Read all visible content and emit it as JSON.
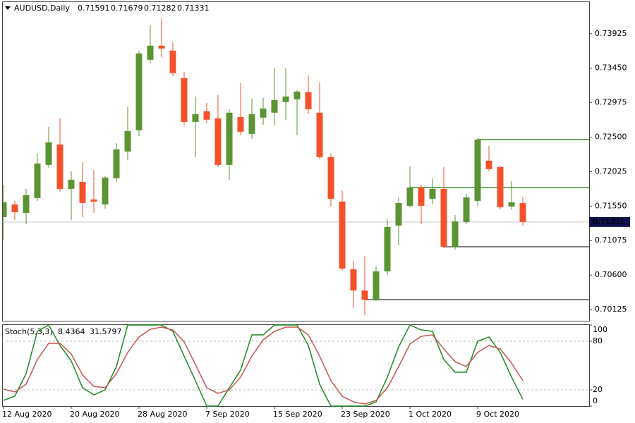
{
  "chart_data": [
    {
      "type": "candlestick",
      "symbol": "AUDUSD,Daily",
      "categories": [
        "12 Aug 2020",
        null,
        null,
        null,
        null,
        null,
        "20 Aug 2020",
        null,
        null,
        null,
        null,
        null,
        "28 Aug 2020",
        null,
        null,
        null,
        null,
        null,
        "7 Sep 2020",
        null,
        null,
        null,
        null,
        null,
        "15 Sep 2020",
        null,
        null,
        null,
        null,
        null,
        "23 Sep 2020",
        null,
        null,
        null,
        null,
        null,
        "1 Oct 2020",
        null,
        null,
        null,
        null,
        null,
        "9 Oct 2020",
        null,
        null,
        null,
        null
      ],
      "open": [
        0.71398,
        0.71573,
        0.71457,
        0.71661,
        0.72118,
        0.72399,
        0.71787,
        0.71884,
        0.71641,
        0.71573,
        0.71933,
        0.72302,
        0.72594,
        0.73566,
        0.7376,
        0.73692,
        0.73313,
        0.7271,
        0.72856,
        0.72759,
        0.72118,
        0.72778,
        0.72545,
        0.72769,
        0.72837,
        0.72983,
        0.73021,
        0.73119,
        0.72837,
        0.72224,
        0.71612,
        0.70679,
        0.70387,
        0.70261,
        0.7065,
        0.71282,
        0.71554,
        0.71806,
        0.71651,
        0.71787,
        0.7099,
        0.7133,
        0.71622,
        0.72176,
        0.72088,
        0.71544,
        0.71591
      ],
      "high": [
        0.71845,
        0.71622,
        0.71787,
        0.72273,
        0.72642,
        0.72759,
        0.7203,
        0.72156,
        0.7204,
        0.71962,
        0.72419,
        0.72915,
        0.73692,
        0.74042,
        0.74139,
        0.73809,
        0.73401,
        0.7306,
        0.72973,
        0.7308,
        0.72885,
        0.73245,
        0.73031,
        0.73041,
        0.73449,
        0.73449,
        0.73148,
        0.73352,
        0.73255,
        0.72273,
        0.71768,
        0.70796,
        0.70864,
        0.70718,
        0.71369,
        0.7167,
        0.72098,
        0.71845,
        0.71933,
        0.72088,
        0.71427,
        0.71719,
        0.72487,
        0.7238,
        0.72108,
        0.71894,
        0.71679
      ],
      "low": [
        0.71087,
        0.71359,
        0.71301,
        0.71622,
        0.72079,
        0.71748,
        0.71359,
        0.71398,
        0.71457,
        0.71515,
        0.71884,
        0.72186,
        0.72516,
        0.73517,
        0.73595,
        0.73342,
        0.72662,
        0.72224,
        0.72691,
        0.72088,
        0.71913,
        0.72526,
        0.72477,
        0.72672,
        0.72662,
        0.7274,
        0.72526,
        0.72817,
        0.72195,
        0.71544,
        0.7066,
        0.70144,
        0.70047,
        0.70242,
        0.70601,
        0.71009,
        0.71534,
        0.71301,
        0.71573,
        0.70971,
        0.70951,
        0.71301,
        0.71554,
        0.7203,
        0.71505,
        0.71505,
        0.71282
      ],
      "close": [
        0.71602,
        0.71466,
        0.717,
        0.72137,
        0.72429,
        0.71787,
        0.71913,
        0.71593,
        0.71612,
        0.71943,
        0.72331,
        0.72584,
        0.73653,
        0.7376,
        0.73721,
        0.73381,
        0.7271,
        0.72817,
        0.7274,
        0.72118,
        0.72837,
        0.72574,
        0.72817,
        0.72895,
        0.73012,
        0.7306,
        0.73128,
        0.72885,
        0.72224,
        0.71651,
        0.70689,
        0.70387,
        0.70261,
        0.7065,
        0.71262,
        0.71593,
        0.71806,
        0.71554,
        0.71787,
        0.7099,
        0.7134,
        0.7167,
        0.72467,
        0.72059,
        0.71534,
        0.71602,
        0.71331
      ],
      "up_color": "#5b9432",
      "down_color": "#f4512a",
      "ylim": [
        0.6997,
        0.7437
      ],
      "yticks": [
        0.70125,
        {
          "value": 0.706,
          "label": "0.70600"
        },
        0.71075,
        {
          "value": 0.7155,
          "label": "0.71550"
        },
        0.72025,
        {
          "value": 0.725,
          "label": "0.72500"
        },
        0.72975,
        {
          "value": 0.7345,
          "label": "0.73450"
        },
        0.73925
      ],
      "levels": [
        {
          "value": 0.72467,
          "color": "#3f8f2f"
        },
        {
          "value": 0.71806,
          "color": "#3f8f2f"
        },
        {
          "value": 0.7099,
          "color": "#555555"
        },
        {
          "value": 0.70261,
          "color": "#555555"
        }
      ],
      "current_price_color": "#10104a"
    },
    {
      "type": "line",
      "title": "Stoch(5,3,3)",
      "series": [
        {
          "color": "#1c8a1c",
          "values": [
            7.0,
            12.2,
            40.0,
            92.2,
            100,
            74.8,
            55.7,
            22.6,
            13.9,
            20.0,
            48.7,
            100,
            100,
            100,
            100,
            92.2,
            61.7,
            31.3,
            0,
            0,
            22.6,
            44.3,
            87.8,
            87.8,
            100,
            100,
            100,
            74.8,
            27.0,
            0,
            0,
            0,
            0,
            5.2,
            35.7,
            73.0,
            100,
            93.9,
            92.2,
            57.4,
            41.7,
            41.7,
            80.0,
            85.2,
            66.1,
            35.7,
            8.4364
          ]
        },
        {
          "color": "#c9544f",
          "values": [
            20.9,
            17.4,
            27.0,
            57.4,
            77.4,
            77.4,
            64.3,
            38.3,
            24.3,
            22.6,
            40.0,
            66.1,
            85.2,
            94.8,
            97.4,
            93.9,
            79.1,
            51.3,
            22.6,
            15.7,
            20.0,
            35.7,
            61.7,
            81.7,
            92.2,
            97.4,
            97.4,
            87.8,
            61.7,
            31.3,
            12.2,
            5.2,
            2.6,
            7.0,
            22.6,
            48.7,
            76.5,
            86.1,
            87.8,
            70.4,
            54.8,
            48.7,
            66.1,
            74.8,
            70.4,
            53.0,
            31.5797
          ]
        }
      ],
      "ylim": [
        0,
        100
      ],
      "yticks": [
        0,
        20,
        80,
        100
      ],
      "grid": true
    }
  ]
}
